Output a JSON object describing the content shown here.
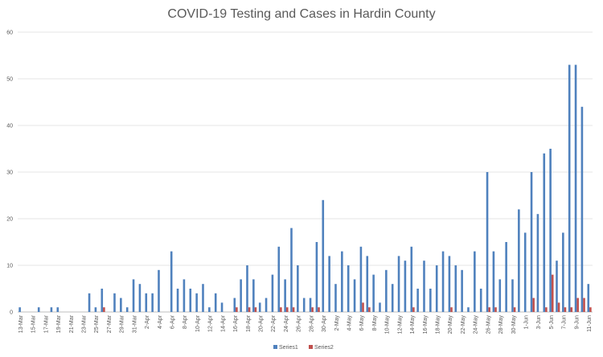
{
  "chart_data": {
    "type": "bar",
    "title": "COVID-19 Testing and Cases in Hardin County",
    "xlabel": "",
    "ylabel": "",
    "ylim": [
      0,
      60
    ],
    "yticks": [
      0,
      10,
      20,
      30,
      40,
      50,
      60
    ],
    "grid": "horizontal",
    "legend_position": "bottom",
    "categories": [
      "13-Mar",
      "14-Mar",
      "15-Mar",
      "16-Mar",
      "17-Mar",
      "18-Mar",
      "19-Mar",
      "20-Mar",
      "21-Mar",
      "22-Mar",
      "23-Mar",
      "24-Mar",
      "25-Mar",
      "26-Mar",
      "27-Mar",
      "28-Mar",
      "29-Mar",
      "30-Mar",
      "31-Mar",
      "1-Apr",
      "2-Apr",
      "3-Apr",
      "4-Apr",
      "5-Apr",
      "6-Apr",
      "7-Apr",
      "8-Apr",
      "9-Apr",
      "10-Apr",
      "11-Apr",
      "12-Apr",
      "13-Apr",
      "14-Apr",
      "15-Apr",
      "16-Apr",
      "17-Apr",
      "18-Apr",
      "19-Apr",
      "20-Apr",
      "21-Apr",
      "22-Apr",
      "23-Apr",
      "24-Apr",
      "25-Apr",
      "26-Apr",
      "27-Apr",
      "28-Apr",
      "29-Apr",
      "30-Apr",
      "1-May",
      "2-May",
      "3-May",
      "4-May",
      "5-May",
      "6-May",
      "7-May",
      "8-May",
      "9-May",
      "10-May",
      "11-May",
      "12-May",
      "13-May",
      "14-May",
      "15-May",
      "16-May",
      "17-May",
      "18-May",
      "19-May",
      "20-May",
      "21-May",
      "22-May",
      "23-May",
      "24-May",
      "25-May",
      "26-May",
      "27-May",
      "28-May",
      "29-May",
      "30-May",
      "31-May",
      "1-Jun",
      "2-Jun",
      "3-Jun",
      "4-Jun",
      "5-Jun",
      "6-Jun",
      "7-Jun",
      "8-Jun",
      "9-Jun",
      "10-Jun",
      "11-Jun"
    ],
    "series": [
      {
        "name": "Series1",
        "color": "#4f81bd",
        "values": [
          1,
          0,
          0,
          1,
          0,
          1,
          1,
          0,
          0,
          0,
          0,
          4,
          1,
          5,
          0,
          4,
          3,
          1,
          7,
          6,
          4,
          4,
          9,
          0,
          13,
          5,
          7,
          5,
          4,
          6,
          1,
          4,
          2,
          0,
          3,
          7,
          10,
          7,
          2,
          3,
          8,
          14,
          7,
          18,
          10,
          3,
          3,
          15,
          24,
          12,
          6,
          13,
          10,
          7,
          14,
          12,
          8,
          2,
          9,
          6,
          12,
          11,
          14,
          5,
          11,
          5,
          10,
          13,
          12,
          10,
          9,
          1,
          13,
          5,
          30,
          13,
          7,
          15,
          7,
          22,
          17,
          30,
          21,
          34,
          35,
          11,
          17,
          53,
          53,
          44,
          6
        ]
      },
      {
        "name": "Series2",
        "color": "#c0504d",
        "values": [
          0,
          0,
          0,
          0,
          0,
          0,
          0,
          0,
          0,
          0,
          0,
          0,
          0,
          1,
          0,
          0,
          0,
          0,
          0,
          0,
          0,
          0,
          0,
          0,
          0,
          0,
          0,
          0,
          0,
          0,
          0,
          0,
          0,
          0,
          1,
          0,
          1,
          1,
          0,
          0,
          0,
          1,
          1,
          1,
          0,
          0,
          1,
          1,
          0,
          0,
          0,
          0,
          0,
          0,
          2,
          1,
          0,
          0,
          0,
          0,
          0,
          0,
          1,
          0,
          0,
          0,
          0,
          0,
          1,
          0,
          0,
          0,
          0,
          0,
          1,
          1,
          0,
          0,
          1,
          0,
          0,
          3,
          0,
          1,
          8,
          2,
          1,
          1,
          3,
          3,
          1
        ]
      }
    ]
  }
}
